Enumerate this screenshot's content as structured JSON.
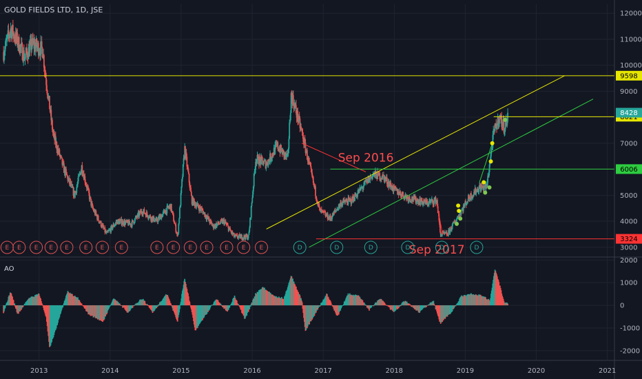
{
  "chart_data": {
    "type": "candlestick",
    "title": "GOLD FIELDS LTD, 1D, JSE",
    "price_axis": {
      "ticks": [
        3000,
        4000,
        5000,
        6000,
        7000,
        8000,
        9000,
        10000,
        11000,
        12000
      ],
      "range": [
        2650,
        12350
      ]
    },
    "ao_axis": {
      "ticks": [
        -2000,
        -1000,
        0,
        1000,
        2000
      ],
      "range": [
        -2400,
        2100
      ]
    },
    "time_axis": {
      "ticks": [
        "2013",
        "2014",
        "2015",
        "2016",
        "2017",
        "2018",
        "2019",
        "2020",
        "2021"
      ],
      "range": [
        2012.45,
        2021.1
      ]
    },
    "price_anchors": [
      [
        2012.5,
        10500
      ],
      [
        2012.6,
        11400
      ],
      [
        2012.7,
        10900
      ],
      [
        2012.8,
        10300
      ],
      [
        2012.9,
        10800
      ],
      [
        2013.05,
        10600
      ],
      [
        2013.1,
        9400
      ],
      [
        2013.2,
        7300
      ],
      [
        2013.35,
        6000
      ],
      [
        2013.5,
        5000
      ],
      [
        2013.6,
        6100
      ],
      [
        2013.75,
        4500
      ],
      [
        2013.95,
        3500
      ],
      [
        2014.1,
        4000
      ],
      [
        2014.3,
        3900
      ],
      [
        2014.45,
        4400
      ],
      [
        2014.65,
        4000
      ],
      [
        2014.85,
        4600
      ],
      [
        2014.95,
        3400
      ],
      [
        2015.05,
        6800
      ],
      [
        2015.15,
        4800
      ],
      [
        2015.3,
        4400
      ],
      [
        2015.45,
        3800
      ],
      [
        2015.6,
        4000
      ],
      [
        2015.75,
        3400
      ],
      [
        2015.95,
        3400
      ],
      [
        2016.05,
        6400
      ],
      [
        2016.2,
        6200
      ],
      [
        2016.35,
        6900
      ],
      [
        2016.5,
        6400
      ],
      [
        2016.55,
        8900
      ],
      [
        2016.7,
        7400
      ],
      [
        2016.85,
        5600
      ],
      [
        2016.95,
        4400
      ],
      [
        2017.1,
        4100
      ],
      [
        2017.25,
        4700
      ],
      [
        2017.4,
        4800
      ],
      [
        2017.55,
        5300
      ],
      [
        2017.7,
        5800
      ],
      [
        2017.85,
        5700
      ],
      [
        2018.0,
        5200
      ],
      [
        2018.2,
        4900
      ],
      [
        2018.45,
        4700
      ],
      [
        2018.6,
        4800
      ],
      [
        2018.65,
        3500
      ],
      [
        2018.75,
        3500
      ],
      [
        2018.9,
        4200
      ],
      [
        2019.05,
        4900
      ],
      [
        2019.2,
        5300
      ],
      [
        2019.3,
        5300
      ],
      [
        2019.4,
        7400
      ],
      [
        2019.48,
        8000
      ],
      [
        2019.55,
        7600
      ],
      [
        2019.6,
        8000
      ]
    ],
    "ao_anchors": [
      [
        2012.5,
        -300
      ],
      [
        2012.6,
        600
      ],
      [
        2012.7,
        -400
      ],
      [
        2012.85,
        300
      ],
      [
        2013.0,
        500
      ],
      [
        2013.1,
        -500
      ],
      [
        2013.15,
        -1900
      ],
      [
        2013.25,
        -900
      ],
      [
        2013.4,
        600
      ],
      [
        2013.55,
        300
      ],
      [
        2013.7,
        -400
      ],
      [
        2013.9,
        -700
      ],
      [
        2014.05,
        300
      ],
      [
        2014.25,
        -300
      ],
      [
        2014.45,
        300
      ],
      [
        2014.6,
        -300
      ],
      [
        2014.8,
        500
      ],
      [
        2014.95,
        -700
      ],
      [
        2015.05,
        1200
      ],
      [
        2015.15,
        -300
      ],
      [
        2015.2,
        -1100
      ],
      [
        2015.35,
        -400
      ],
      [
        2015.5,
        300
      ],
      [
        2015.65,
        -300
      ],
      [
        2015.75,
        400
      ],
      [
        2015.9,
        -600
      ],
      [
        2016.05,
        500
      ],
      [
        2016.15,
        800
      ],
      [
        2016.3,
        400
      ],
      [
        2016.45,
        300
      ],
      [
        2016.55,
        1300
      ],
      [
        2016.7,
        200
      ],
      [
        2016.75,
        -1100
      ],
      [
        2016.9,
        -300
      ],
      [
        2017.05,
        500
      ],
      [
        2017.2,
        -500
      ],
      [
        2017.35,
        500
      ],
      [
        2017.5,
        400
      ],
      [
        2017.65,
        -200
      ],
      [
        2017.8,
        300
      ],
      [
        2018.0,
        -300
      ],
      [
        2018.15,
        200
      ],
      [
        2018.35,
        -300
      ],
      [
        2018.55,
        200
      ],
      [
        2018.65,
        -800
      ],
      [
        2018.8,
        -300
      ],
      [
        2018.95,
        400
      ],
      [
        2019.1,
        500
      ],
      [
        2019.25,
        400
      ],
      [
        2019.35,
        200
      ],
      [
        2019.42,
        1600
      ],
      [
        2019.5,
        700
      ],
      [
        2019.55,
        100
      ],
      [
        2019.6,
        100
      ]
    ],
    "horizontal_lines": [
      {
        "price": 9598,
        "color": "#e6e600",
        "label": "9598",
        "x_from": 2012.45
      },
      {
        "price": 8021,
        "color": "#e6e600",
        "label": "8021",
        "x_from": 2019.4
      },
      {
        "price": 6006,
        "color": "#2ecc40",
        "label": "6006",
        "x_from": 2017.1
      },
      {
        "price": 3324,
        "color": "#ff3333",
        "label": "3324",
        "x_from": 2016.9
      }
    ],
    "current_price_label": {
      "text": "8428",
      "color": "#26a69a"
    },
    "trend_lines": [
      {
        "from": [
          2016.2,
          3700
        ],
        "to": [
          2020.4,
          9600
        ],
        "color": "#e6e600"
      },
      {
        "from": [
          2016.8,
          3000
        ],
        "to": [
          2020.8,
          8700
        ],
        "color": "#2ecc40"
      },
      {
        "from": [
          2016.7,
          7000
        ],
        "to": [
          2017.6,
          5900
        ],
        "color": "#ff3333"
      },
      {
        "from": [
          2018.6,
          4700
        ],
        "to": [
          2018.68,
          3500
        ],
        "color": "#ff3333"
      },
      {
        "from": [
          2019.2,
          5500
        ],
        "to": [
          2019.38,
          7000
        ],
        "color": "#2ecc40"
      }
    ],
    "annotations": [
      {
        "text": "Sep 2016",
        "x": 2017.6,
        "price": 6300,
        "color": "#ff4d4d"
      },
      {
        "text": "Sep 2017",
        "x": 2018.6,
        "price": 2750,
        "color": "#ff4d4d"
      }
    ],
    "markers": [
      {
        "x": 2018.9,
        "price": 4600,
        "color": "#e6e600"
      },
      {
        "x": 2018.91,
        "price": 4400,
        "color": "#e6e600"
      },
      {
        "x": 2018.88,
        "price": 3900,
        "color": "#7ec850"
      },
      {
        "x": 2018.93,
        "price": 4100,
        "color": "#7ec850"
      },
      {
        "x": 2019.26,
        "price": 5500,
        "color": "#e6e600"
      },
      {
        "x": 2019.28,
        "price": 5100,
        "color": "#7ec850"
      },
      {
        "x": 2019.34,
        "price": 5300,
        "color": "#7ec850"
      },
      {
        "x": 2019.36,
        "price": 6300,
        "color": "#e6e600"
      },
      {
        "x": 2019.38,
        "price": 7000,
        "color": "#e6e600"
      },
      {
        "x": 2019.56,
        "price": 7900,
        "color": "#7ec850"
      }
    ],
    "event_badges": [
      {
        "text": "E",
        "x": 2012.55,
        "color": "#e05252"
      },
      {
        "text": "E",
        "x": 2012.72,
        "color": "#e05252"
      },
      {
        "text": "E",
        "x": 2012.96,
        "color": "#e05252"
      },
      {
        "text": "E",
        "x": 2013.17,
        "color": "#e05252"
      },
      {
        "text": "E",
        "x": 2013.39,
        "color": "#e05252"
      },
      {
        "text": "E",
        "x": 2013.66,
        "color": "#e05252"
      },
      {
        "text": "E",
        "x": 2013.89,
        "color": "#e05252"
      },
      {
        "text": "E",
        "x": 2014.16,
        "color": "#e05252"
      },
      {
        "text": "E",
        "x": 2014.66,
        "color": "#e05252"
      },
      {
        "text": "E",
        "x": 2014.89,
        "color": "#e05252"
      },
      {
        "text": "E",
        "x": 2015.13,
        "color": "#e05252"
      },
      {
        "text": "E",
        "x": 2015.36,
        "color": "#e05252"
      },
      {
        "text": "E",
        "x": 2015.64,
        "color": "#e05252"
      },
      {
        "text": "E",
        "x": 2015.88,
        "color": "#e05252"
      },
      {
        "text": "E",
        "x": 2016.13,
        "color": "#e05252"
      },
      {
        "text": "D",
        "x": 2016.67,
        "color": "#26a69a"
      },
      {
        "text": "D",
        "x": 2017.19,
        "color": "#26a69a"
      },
      {
        "text": "D",
        "x": 2017.67,
        "color": "#26a69a"
      },
      {
        "text": "D",
        "x": 2018.19,
        "color": "#26a69a"
      },
      {
        "text": "D",
        "x": 2018.67,
        "color": "#26a69a"
      },
      {
        "text": "D",
        "x": 2019.16,
        "color": "#26a69a"
      }
    ],
    "indicator": {
      "name": "AO"
    },
    "colors": {
      "background": "#131722",
      "up": "#26a69a",
      "down": "#ef5350",
      "ao_up": "#26a69a",
      "ao_down": "#ef5350",
      "grid": "#1f2430",
      "axis_text": "#b2b5be"
    }
  }
}
